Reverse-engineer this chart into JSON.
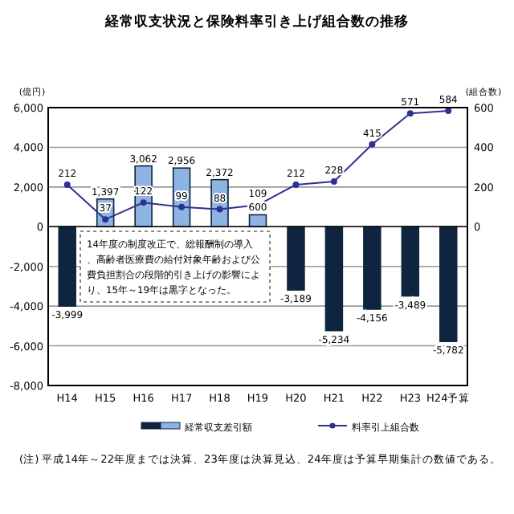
{
  "chart_data": {
    "type": "bar",
    "title": "経常収支状況と保険料率引き上げ組合数の推移",
    "ylabel": "(億円)",
    "y2label": "(組合数)",
    "categories": [
      "H14",
      "H15",
      "H16",
      "H17",
      "H18",
      "H19",
      "H20",
      "H21",
      "H22",
      "H23",
      "H24予算"
    ],
    "series": [
      {
        "name": "経常収支差引額",
        "colors": [
          "#0f243e",
          "#8db4e2",
          "#8db4e2",
          "#8db4e2",
          "#8db4e2",
          "#8db4e2",
          "#0f243e",
          "#0f243e",
          "#0f243e",
          "#0f243e",
          "#0f243e"
        ],
        "values": [
          -3999,
          1397,
          3062,
          2956,
          2372,
          600,
          -3189,
          -5234,
          -4156,
          -3489,
          -5782
        ],
        "value_labels": [
          "-3,999",
          "1,397",
          "3,062",
          "2,956",
          "2,372",
          "600",
          "-3,189",
          "-5,234",
          "-4,156",
          "-3,489",
          "-5,782"
        ]
      },
      {
        "name": "料率引上組合数",
        "type": "line",
        "axis": "y2",
        "color": "#2e3192",
        "marker": "circle",
        "values": [
          212,
          37,
          122,
          99,
          88,
          109,
          212,
          228,
          415,
          571,
          584
        ],
        "value_labels": [
          "212",
          "37",
          "122",
          "99",
          "88",
          "109",
          "212",
          "228",
          "415",
          "571",
          "584"
        ]
      }
    ],
    "ylim": [
      -8000,
      6000
    ],
    "yticks": [
      {
        "value": -8000,
        "label": "-8,000"
      },
      {
        "value": -6000,
        "label": "-6,000"
      },
      {
        "value": -4000,
        "label": "-4,000"
      },
      {
        "value": -2000,
        "label": "-2,000"
      },
      0,
      {
        "value": 2000,
        "label": "2,000"
      },
      {
        "value": 4000,
        "label": "4,000"
      },
      {
        "value": 6000,
        "label": "6,000"
      }
    ],
    "y2lim": [
      -800,
      600
    ],
    "y2ticks": [
      0,
      200,
      400,
      600
    ],
    "grid": "y",
    "legend": "bottom",
    "annotations": [
      {
        "text": "14年度の制度改正で、総報酬制の導入、高齢者医療費の給付対象年齢および公費負担割合の段階的引き上げの影響により、15年～19年は黒字となった。"
      },
      {
        "text": "(注) 平成14年～22年度までは決算、23年度は決算見込、24年度は予算早期集計の数値である。"
      }
    ]
  }
}
